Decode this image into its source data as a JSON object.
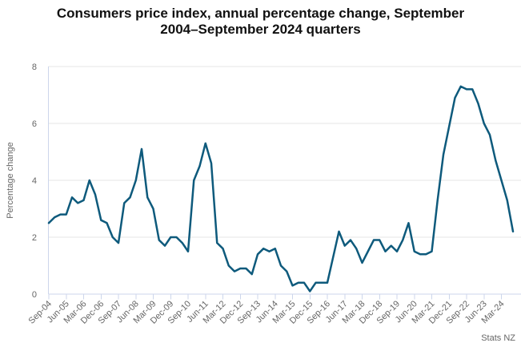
{
  "header": {
    "title_lines": [
      "Consumers price index, annual percentage change, September",
      "2004–September 2024 quarters"
    ]
  },
  "chart_data": {
    "type": "line",
    "title": "Consumers price index, annual percentage change, September 2004–September 2024 quarters",
    "xlabel": "",
    "ylabel": "Percentage change",
    "source": "Stats NZ",
    "ylim": [
      0,
      8
    ],
    "yticks": [
      0,
      2,
      4,
      6,
      8
    ],
    "grid": "horizontal",
    "legend": "none",
    "xtick_label_every": 3,
    "series_name": "CPI annual percentage change",
    "x": [
      "Sep-04",
      "Dec-04",
      "Mar-05",
      "Jun-05",
      "Sep-05",
      "Dec-05",
      "Mar-06",
      "Jun-06",
      "Sep-06",
      "Dec-06",
      "Mar-07",
      "Jun-07",
      "Sep-07",
      "Dec-07",
      "Mar-08",
      "Jun-08",
      "Sep-08",
      "Dec-08",
      "Mar-09",
      "Jun-09",
      "Sep-09",
      "Dec-09",
      "Mar-10",
      "Jun-10",
      "Sep-10",
      "Dec-10",
      "Mar-11",
      "Jun-11",
      "Sep-11",
      "Dec-11",
      "Mar-12",
      "Jun-12",
      "Sep-12",
      "Dec-12",
      "Mar-13",
      "Jun-13",
      "Sep-13",
      "Dec-13",
      "Mar-14",
      "Jun-14",
      "Sep-14",
      "Dec-14",
      "Mar-15",
      "Jun-15",
      "Sep-15",
      "Dec-15",
      "Mar-16",
      "Jun-16",
      "Sep-16",
      "Dec-16",
      "Mar-17",
      "Jun-17",
      "Sep-17",
      "Dec-17",
      "Mar-18",
      "Jun-18",
      "Sep-18",
      "Dec-18",
      "Mar-19",
      "Jun-19",
      "Sep-19",
      "Dec-19",
      "Mar-20",
      "Jun-20",
      "Sep-20",
      "Dec-20",
      "Mar-21",
      "Jun-21",
      "Sep-21",
      "Dec-21",
      "Mar-22",
      "Jun-22",
      "Sep-22",
      "Dec-22",
      "Mar-23",
      "Jun-23",
      "Sep-23",
      "Dec-23",
      "Mar-24",
      "Jun-24",
      "Sep-24"
    ],
    "values": [
      2.5,
      2.7,
      2.8,
      2.8,
      3.4,
      3.2,
      3.3,
      4.0,
      3.5,
      2.6,
      2.5,
      2.0,
      1.8,
      3.2,
      3.4,
      4.0,
      5.1,
      3.4,
      3.0,
      1.9,
      1.7,
      2.0,
      2.0,
      1.8,
      1.5,
      4.0,
      4.5,
      5.3,
      4.6,
      1.8,
      1.6,
      1.0,
      0.8,
      0.9,
      0.9,
      0.7,
      1.4,
      1.6,
      1.5,
      1.6,
      1.0,
      0.8,
      0.3,
      0.4,
      0.4,
      0.1,
      0.4,
      0.4,
      0.4,
      1.3,
      2.2,
      1.7,
      1.9,
      1.6,
      1.1,
      1.5,
      1.9,
      1.9,
      1.5,
      1.7,
      1.5,
      1.9,
      2.5,
      1.5,
      1.4,
      1.4,
      1.5,
      3.3,
      4.9,
      5.9,
      6.9,
      7.3,
      7.2,
      7.2,
      6.7,
      6.0,
      5.6,
      4.7,
      4.0,
      3.3,
      2.2
    ],
    "colors": {
      "line": "#0e5a7c",
      "grid": "#e6e6e6",
      "axis": "#ccd6eb",
      "labels": "#666666",
      "title": "#111111"
    }
  }
}
